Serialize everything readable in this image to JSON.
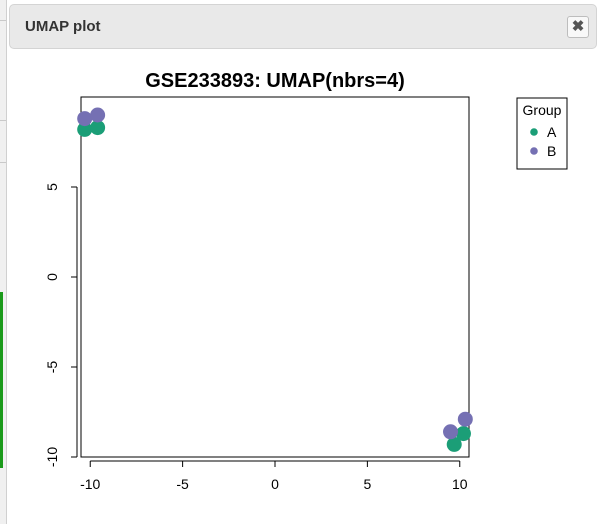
{
  "dialog": {
    "title": "UMAP plot",
    "close_label": "✖"
  },
  "colors": {
    "group_a": "#1b9e77",
    "group_b": "#7570b3"
  },
  "chart_data": {
    "type": "scatter",
    "title": "GSE233893: UMAP(nbrs=4)",
    "xlabel": "",
    "ylabel": "",
    "xlim": [
      -10.5,
      10.5
    ],
    "ylim": [
      -10,
      10
    ],
    "xticks": [
      -10,
      -5,
      0,
      5,
      10
    ],
    "xtick_labels": [
      "-10",
      "-5",
      "0",
      "5",
      "10"
    ],
    "yticks": [
      -10,
      -5,
      0,
      5
    ],
    "ytick_labels": [
      "-10",
      "-5",
      "0",
      "5"
    ],
    "legend": {
      "title": "Group",
      "placement": "right",
      "entries": [
        "A",
        "B"
      ]
    },
    "series": [
      {
        "name": "A",
        "color": "#1b9e77",
        "x": [
          -10.3,
          -9.6,
          9.7,
          10.2
        ],
        "y": [
          8.2,
          8.3,
          -9.3,
          -8.7
        ]
      },
      {
        "name": "B",
        "color": "#7570b3",
        "x": [
          -10.3,
          -9.6,
          9.5,
          10.3
        ],
        "y": [
          8.8,
          9.0,
          -8.6,
          -7.9
        ]
      }
    ]
  }
}
